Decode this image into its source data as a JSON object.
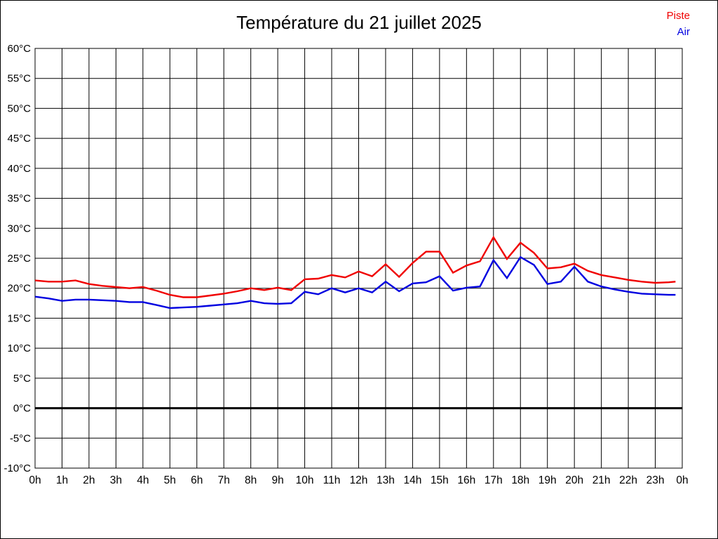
{
  "title": "Température du 21 juillet 2025",
  "legend": {
    "items": [
      {
        "label": "Piste",
        "color": "#f00000"
      },
      {
        "label": "Air",
        "color": "#0000e0"
      }
    ]
  },
  "chart_data": {
    "type": "line",
    "title": "Température du 21 juillet 2025",
    "xlabel": "",
    "ylabel": "",
    "xlim": [
      0,
      24
    ],
    "ylim": [
      -10,
      60
    ],
    "y_tick_step": 5,
    "y_tick_suffix": "°C",
    "y_tick_labels": [
      "60°C",
      "55°C",
      "50°C",
      "45°C",
      "40°C",
      "35°C",
      "30°C",
      "25°C",
      "20°C",
      "15°C",
      "10°C",
      "5°C",
      "0°C",
      "-5°C",
      "-10°C"
    ],
    "x_tick_labels": [
      "0h",
      "1h",
      "2h",
      "3h",
      "4h",
      "5h",
      "6h",
      "7h",
      "8h",
      "9h",
      "10h",
      "11h",
      "12h",
      "13h",
      "14h",
      "15h",
      "16h",
      "17h",
      "18h",
      "19h",
      "20h",
      "21h",
      "22h",
      "23h",
      "0h"
    ],
    "grid": "both",
    "grid_color": "#000000",
    "zero_line_emphasized": true,
    "legend_position": "top-right",
    "x": [
      0,
      0.5,
      1,
      1.5,
      2,
      2.5,
      3,
      3.5,
      4,
      4.5,
      5,
      5.5,
      6,
      6.5,
      7,
      7.5,
      8,
      8.5,
      9,
      9.5,
      10,
      10.5,
      11,
      11.5,
      12,
      12.5,
      13,
      13.5,
      14,
      14.5,
      15,
      15.5,
      16,
      16.5,
      17,
      17.5,
      18,
      18.5,
      19,
      19.5,
      20,
      20.5,
      21,
      21.5,
      22,
      22.5,
      23,
      23.5,
      23.75
    ],
    "series": [
      {
        "name": "Piste",
        "color": "#f00000",
        "values": [
          21.3,
          21.1,
          21.1,
          21.3,
          20.7,
          20.4,
          20.2,
          20.0,
          20.2,
          19.6,
          18.9,
          18.5,
          18.5,
          18.8,
          19.1,
          19.5,
          20.0,
          19.7,
          20.1,
          19.7,
          21.5,
          21.6,
          22.2,
          21.8,
          22.8,
          22.0,
          24.0,
          21.9,
          24.2,
          26.1,
          26.1,
          22.6,
          23.8,
          24.5,
          28.5,
          24.9,
          27.6,
          25.9,
          23.3,
          23.5,
          24.1,
          22.9,
          22.2,
          21.8,
          21.4,
          21.1,
          20.9,
          21.0,
          21.1
        ]
      },
      {
        "name": "Air",
        "color": "#0000e0",
        "values": [
          18.6,
          18.3,
          17.9,
          18.1,
          18.1,
          18.0,
          17.9,
          17.7,
          17.7,
          17.2,
          16.7,
          16.8,
          16.9,
          17.1,
          17.3,
          17.5,
          17.9,
          17.5,
          17.4,
          17.5,
          19.4,
          19.0,
          20.0,
          19.3,
          20.0,
          19.3,
          21.1,
          19.5,
          20.8,
          21.0,
          22.0,
          19.6,
          20.1,
          20.3,
          24.7,
          21.7,
          25.2,
          23.9,
          20.7,
          21.1,
          23.6,
          21.1,
          20.3,
          19.8,
          19.4,
          19.1,
          19.0,
          18.9,
          18.9
        ]
      }
    ]
  }
}
